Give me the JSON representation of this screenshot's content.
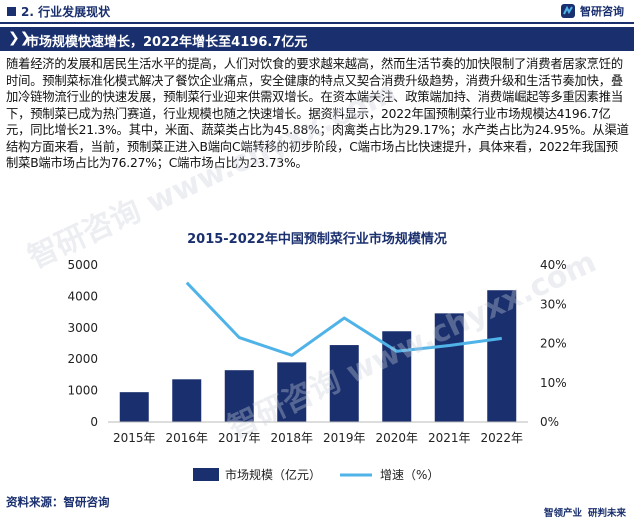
{
  "header": {
    "section": "2. 行业发展现状",
    "logo_text": "智研咨询"
  },
  "title_bar": {
    "chevron": "❯❯",
    "title": "市场规模快速增长，2022年增长至4196.7亿元"
  },
  "body": {
    "paragraph": "随着经济的发展和居民生活水平的提高，人们对饮食的要求越来越高，然而生活节奏的加快限制了消费者居家烹饪的时间。预制菜标准化模式解决了餐饮企业痛点，安全健康的特点又契合消费升级趋势，消费升级和生活节奏加快，叠加冷链物流行业的快速发展，预制菜行业迎来供需双增长。在资本端关注、政策端加持、消费端崛起等多重因素推当下，预制菜已成为热门赛道，行业规模也随之快速增长。据资料显示，2022年国预制菜行业市场规模达4196.7亿元，同比增长21.3%。其中，米面、蔬菜类占比为45.88%；肉禽类占比为29.17%；水产类占比为24.95%。从渠道结构方面来看，当前，预制菜正进入B端向C端转移的初步阶段，C端市场占比快速提升，具体来看，2022年我国预制菜B端市场占比为76.27%；C端市场占比为23.73%。"
  },
  "chart_data": {
    "type": "bar+line",
    "title": "2015-2022年中国预制菜行业市场规模情况",
    "categories": [
      "2015年",
      "2016年",
      "2017年",
      "2018年",
      "2019年",
      "2020年",
      "2021年",
      "2022年"
    ],
    "series": [
      {
        "name": "市场规模（亿元）",
        "type": "bar",
        "axis": "left",
        "values": [
          950,
          1360,
          1650,
          1900,
          2450,
          2890,
          3460,
          4196.7
        ]
      },
      {
        "name": "增速（%）",
        "type": "line",
        "axis": "right",
        "values": [
          null,
          35.5,
          21.5,
          17.0,
          26.5,
          18.0,
          19.5,
          21.3
        ]
      }
    ],
    "y_left": {
      "min": 0,
      "max": 5000,
      "ticks": [
        "0",
        "1000",
        "2000",
        "3000",
        "4000",
        "5000"
      ]
    },
    "y_right": {
      "min": 0,
      "max": 40,
      "ticks": [
        "0%",
        "10%",
        "20%",
        "30%",
        "40%"
      ]
    },
    "legend_position": "bottom",
    "colors": {
      "bar": "#1a2f6e",
      "line": "#4fb3e8"
    }
  },
  "source": "资料来源：智研咨询",
  "footer": {
    "left": "智领产业",
    "right": "研判未来"
  },
  "watermark": "智研咨询 www.chyxx.com",
  "colors": {
    "navy": "#1a2f6e",
    "accent_line": "#4fb3e8"
  }
}
